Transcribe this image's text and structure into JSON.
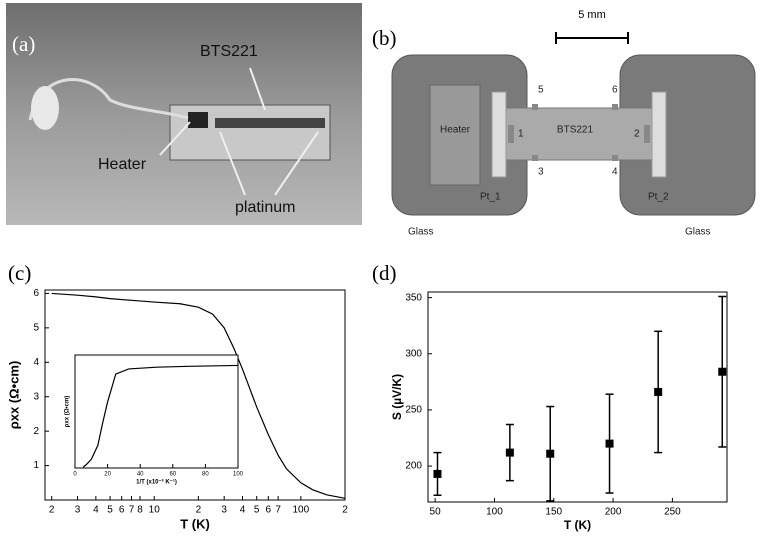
{
  "panel_labels": [
    "(a)",
    "(b)",
    "(c)",
    "(d)"
  ],
  "photo": {
    "labels": {
      "sample": "BTS221",
      "heater": "Heater",
      "platinum": "platinum"
    }
  },
  "diagram": {
    "scale": "5 mm",
    "heater": "Heater",
    "sample": "BTS221",
    "pt1": "Pt_1",
    "pt2": "Pt_2",
    "glass_left": "Glass",
    "glass_right": "Glass",
    "contacts": [
      "1",
      "2",
      "3",
      "4",
      "5",
      "6"
    ]
  },
  "chart_data": [
    {
      "type": "line",
      "xlabel": "T (K)",
      "ylabel": "ρxx (Ω•cm)",
      "color": "#000000",
      "xscale": "log",
      "x": [
        2,
        3,
        4,
        5,
        7,
        10,
        15,
        20,
        25,
        30,
        35,
        40,
        50,
        60,
        70,
        80,
        100,
        120,
        150,
        200
      ],
      "values": [
        6.0,
        5.95,
        5.9,
        5.85,
        5.8,
        5.75,
        5.7,
        5.6,
        5.4,
        5.0,
        4.4,
        3.8,
        2.7,
        1.9,
        1.3,
        0.9,
        0.5,
        0.3,
        0.15,
        0.05
      ],
      "xlim": [
        1.8,
        200
      ],
      "ylim": [
        0,
        6.1
      ],
      "xticks": [
        2,
        3,
        4,
        5,
        6,
        7,
        8,
        10,
        {
          "value": 20,
          "label": "2"
        },
        {
          "value": 30,
          "label": "3"
        },
        {
          "value": 40,
          "label": "4"
        },
        {
          "value": 50,
          "label": "5"
        },
        {
          "value": 60,
          "label": "6"
        },
        {
          "value": 70,
          "label": "7"
        },
        100,
        {
          "value": 200,
          "label": "2"
        }
      ],
      "yticks": [
        1,
        2,
        3,
        4,
        5,
        6
      ]
    },
    {
      "type": "scatter",
      "xlabel": "T (K)",
      "ylabel": "S (µV/K)",
      "color": "#000000",
      "x": [
        52,
        113,
        147,
        197,
        238,
        292
      ],
      "values": [
        193,
        212,
        211,
        220,
        266,
        284
      ],
      "errors": [
        19,
        25,
        42,
        44,
        54,
        67
      ],
      "xlim": [
        44,
        296
      ],
      "ylim": [
        168,
        355
      ],
      "xticks": [
        50,
        100,
        150,
        200,
        250
      ],
      "yticks": [
        200,
        250,
        300,
        350
      ]
    },
    {
      "type": "line",
      "xlabel": "1/T (x10⁻³ K⁻¹)",
      "ylabel": "ρxx (Ω•cm)",
      "color": "#000000",
      "x": [
        5,
        7,
        10,
        12,
        14,
        17,
        20,
        25,
        33,
        50,
        70,
        100
      ],
      "values": [
        0.05,
        0.2,
        0.5,
        0.9,
        1.3,
        2.6,
        3.8,
        5.4,
        5.7,
        5.8,
        5.85,
        5.9
      ],
      "xlim": [
        0,
        100
      ],
      "ylim": [
        0,
        6.5
      ],
      "xticks": [
        0,
        20,
        40,
        60,
        80,
        100
      ]
    }
  ]
}
